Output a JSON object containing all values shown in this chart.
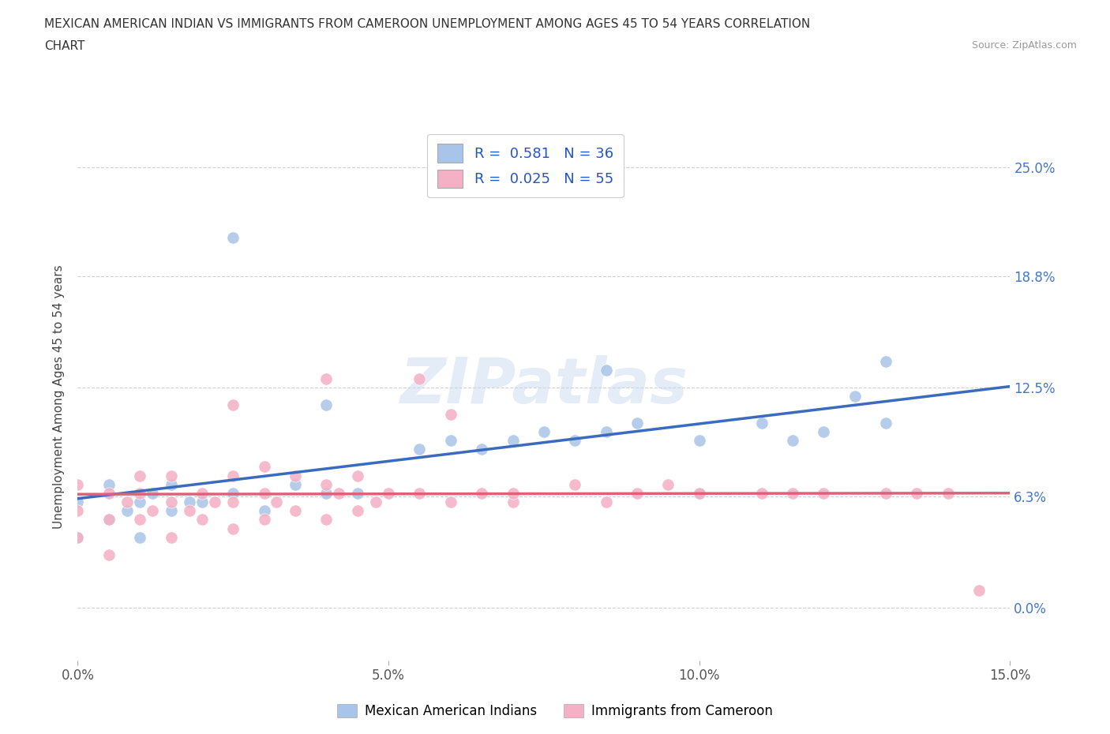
{
  "title_line1": "MEXICAN AMERICAN INDIAN VS IMMIGRANTS FROM CAMEROON UNEMPLOYMENT AMONG AGES 45 TO 54 YEARS CORRELATION",
  "title_line2": "CHART",
  "source_text": "Source: ZipAtlas.com",
  "ylabel": "Unemployment Among Ages 45 to 54 years",
  "xmin": 0.0,
  "xmax": 0.15,
  "ymin": -0.03,
  "ymax": 0.27,
  "yticks": [
    0.0,
    0.063,
    0.125,
    0.188,
    0.25
  ],
  "ytick_labels": [
    "0.0%",
    "6.3%",
    "12.5%",
    "18.8%",
    "25.0%"
  ],
  "xticks": [
    0.0,
    0.05,
    0.1,
    0.15
  ],
  "xtick_labels": [
    "0.0%",
    "5.0%",
    "10.0%",
    "15.0%"
  ],
  "blue_color": "#a8c4e8",
  "pink_color": "#f4b0c4",
  "blue_line_color": "#3a6bbf",
  "pink_line_color": "#e0607a",
  "R_blue": 0.581,
  "N_blue": 36,
  "R_pink": 0.025,
  "N_pink": 55,
  "legend_label_blue": "Mexican American Indians",
  "legend_label_pink": "Immigrants from Cameroon",
  "watermark": "ZIPatlas",
  "background_color": "#ffffff",
  "grid_color": "#d0d0d0",
  "blue_scatter_x": [
    0.0,
    0.0,
    0.005,
    0.005,
    0.008,
    0.01,
    0.01,
    0.012,
    0.015,
    0.015,
    0.018,
    0.02,
    0.025,
    0.03,
    0.035,
    0.04,
    0.04,
    0.045,
    0.055,
    0.06,
    0.065,
    0.07,
    0.075,
    0.08,
    0.085,
    0.09,
    0.1,
    0.1,
    0.11,
    0.115,
    0.12,
    0.125,
    0.13,
    0.13,
    0.025,
    0.085
  ],
  "blue_scatter_y": [
    0.04,
    0.06,
    0.05,
    0.07,
    0.055,
    0.06,
    0.04,
    0.065,
    0.055,
    0.07,
    0.06,
    0.06,
    0.065,
    0.055,
    0.07,
    0.065,
    0.115,
    0.065,
    0.09,
    0.095,
    0.09,
    0.095,
    0.1,
    0.095,
    0.1,
    0.105,
    0.095,
    0.065,
    0.105,
    0.095,
    0.1,
    0.12,
    0.105,
    0.14,
    0.21,
    0.135
  ],
  "pink_scatter_x": [
    0.0,
    0.0,
    0.0,
    0.005,
    0.005,
    0.005,
    0.008,
    0.01,
    0.01,
    0.01,
    0.012,
    0.015,
    0.015,
    0.015,
    0.018,
    0.02,
    0.02,
    0.022,
    0.025,
    0.025,
    0.025,
    0.03,
    0.03,
    0.03,
    0.032,
    0.035,
    0.035,
    0.04,
    0.04,
    0.042,
    0.045,
    0.045,
    0.048,
    0.05,
    0.055,
    0.06,
    0.065,
    0.07,
    0.07,
    0.08,
    0.085,
    0.09,
    0.095,
    0.1,
    0.11,
    0.115,
    0.12,
    0.13,
    0.135,
    0.14,
    0.04,
    0.025,
    0.055,
    0.06,
    0.145
  ],
  "pink_scatter_y": [
    0.04,
    0.055,
    0.07,
    0.03,
    0.05,
    0.065,
    0.06,
    0.05,
    0.065,
    0.075,
    0.055,
    0.04,
    0.06,
    0.075,
    0.055,
    0.05,
    0.065,
    0.06,
    0.045,
    0.06,
    0.075,
    0.05,
    0.065,
    0.08,
    0.06,
    0.055,
    0.075,
    0.05,
    0.07,
    0.065,
    0.055,
    0.075,
    0.06,
    0.065,
    0.065,
    0.06,
    0.065,
    0.06,
    0.065,
    0.07,
    0.06,
    0.065,
    0.07,
    0.065,
    0.065,
    0.065,
    0.065,
    0.065,
    0.065,
    0.065,
    0.13,
    0.115,
    0.13,
    0.11,
    0.01
  ]
}
